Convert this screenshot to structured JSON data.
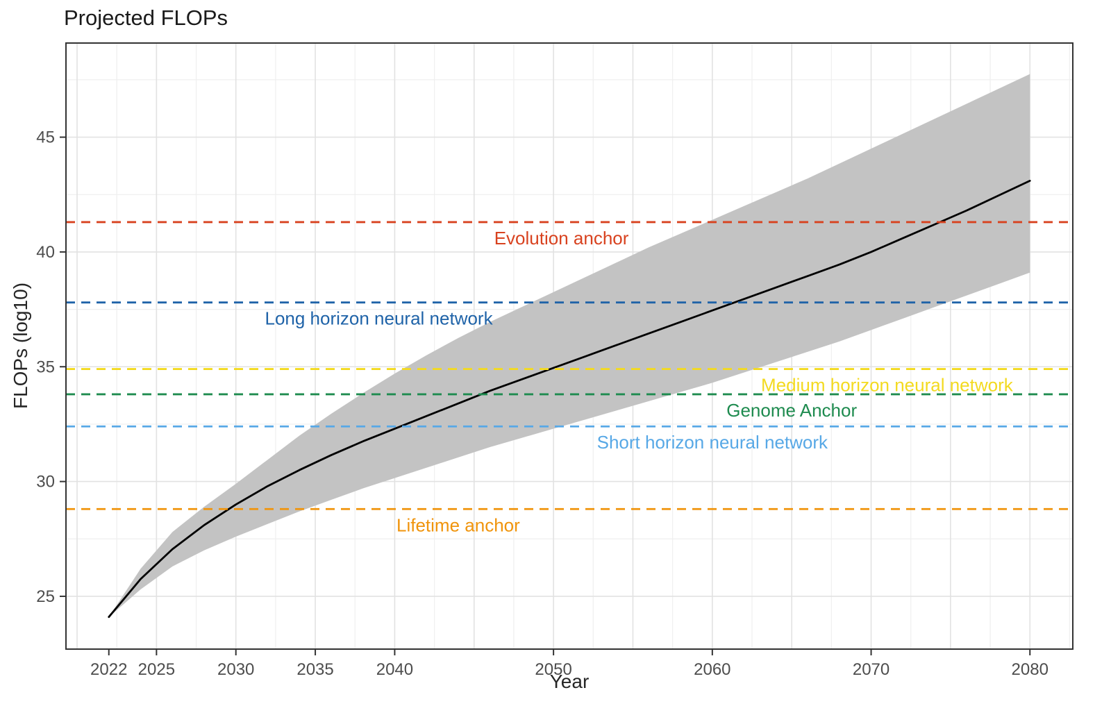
{
  "page": {
    "title": "Projected FLOPs"
  },
  "chart_data": {
    "type": "line",
    "title": "Projected FLOPs",
    "xlabel": "Year",
    "ylabel": "FLOPs (log10)",
    "xlim": [
      2019.3,
      2082.7
    ],
    "ylim": [
      22.7,
      49.1
    ],
    "grid": true,
    "legend": "none",
    "x_tick_values": [
      2022,
      2025,
      2030,
      2035,
      2040,
      2050,
      2060,
      2070,
      2080
    ],
    "x_tick_labels": [
      "2022",
      "2025",
      "2030",
      "2035",
      "2040",
      "2050",
      "2060",
      "2070",
      "2080"
    ],
    "y_tick_values": [
      25,
      30,
      35,
      40,
      45
    ],
    "y_tick_labels": [
      "25",
      "30",
      "35",
      "40",
      "45"
    ],
    "x_grid_major": [
      2020,
      2025,
      2030,
      2035,
      2040,
      2045,
      2050,
      2055,
      2060,
      2065,
      2070,
      2075,
      2080
    ],
    "x_grid_minor": [
      2022.5,
      2027.5,
      2032.5,
      2037.5,
      2042.5,
      2047.5,
      2052.5,
      2057.5,
      2062.5,
      2067.5,
      2072.5,
      2077.5,
      2082.5
    ],
    "y_grid_major": [
      25,
      30,
      35,
      40,
      45
    ],
    "y_grid_minor": [
      27.5,
      32.5,
      37.5,
      42.5,
      47.5
    ],
    "series": [
      {
        "name": "Median projected FLOPs",
        "color": "#000000",
        "style": "solid",
        "x": [
          2022,
          2024,
          2026,
          2028,
          2030,
          2032,
          2034,
          2036,
          2038,
          2040,
          2042,
          2044,
          2046,
          2048,
          2050,
          2052,
          2054,
          2056,
          2058,
          2060,
          2062,
          2064,
          2066,
          2068,
          2070,
          2072,
          2074,
          2076,
          2078,
          2080
        ],
        "y": [
          24.1,
          25.75,
          27.05,
          28.1,
          29.0,
          29.8,
          30.5,
          31.15,
          31.75,
          32.3,
          32.85,
          33.4,
          33.95,
          34.45,
          34.95,
          35.45,
          35.95,
          36.45,
          36.95,
          37.45,
          37.95,
          38.45,
          38.95,
          39.45,
          40.0,
          40.6,
          41.2,
          41.8,
          42.45,
          43.1
        ]
      }
    ],
    "band": {
      "name": "Projection uncertainty interval",
      "color": "#c3c3c3",
      "x": [
        2022,
        2024,
        2026,
        2028,
        2030,
        2032,
        2034,
        2036,
        2038,
        2040,
        2042,
        2044,
        2046,
        2048,
        2050,
        2052,
        2054,
        2056,
        2058,
        2060,
        2062,
        2064,
        2066,
        2068,
        2070,
        2072,
        2074,
        2076,
        2078,
        2080
      ],
      "lower": [
        24.1,
        25.3,
        26.3,
        27.0,
        27.6,
        28.15,
        28.7,
        29.2,
        29.7,
        30.15,
        30.6,
        31.05,
        31.5,
        31.9,
        32.3,
        32.7,
        33.1,
        33.5,
        33.9,
        34.3,
        34.75,
        35.2,
        35.65,
        36.1,
        36.6,
        37.1,
        37.6,
        38.1,
        38.6,
        39.1
      ],
      "upper": [
        24.1,
        26.2,
        27.8,
        28.9,
        29.9,
        30.95,
        32.0,
        32.95,
        33.85,
        34.7,
        35.5,
        36.25,
        36.95,
        37.6,
        38.25,
        38.9,
        39.55,
        40.2,
        40.8,
        41.4,
        42.0,
        42.6,
        43.2,
        43.85,
        44.5,
        45.15,
        45.8,
        46.45,
        47.1,
        47.75
      ]
    },
    "anchors": [
      {
        "label": "Evolution anchor",
        "value": 41.3,
        "color": "#d8421f",
        "label_x": 2050.5
      },
      {
        "label": "Long horizon neural network",
        "value": 37.8,
        "color": "#1f63a8",
        "label_x": 2039
      },
      {
        "label": "Medium horizon neural network",
        "value": 34.9,
        "color": "#f3da20",
        "label_x": 2071
      },
      {
        "label": "Genome Anchor",
        "value": 33.8,
        "color": "#1e8b4f",
        "label_x": 2065
      },
      {
        "label": "Short horizon neural network",
        "value": 32.4,
        "color": "#57a8e6",
        "label_x": 2060
      },
      {
        "label": "Lifetime anchor",
        "value": 28.8,
        "color": "#f0940c",
        "label_x": 2044
      }
    ],
    "theme": {
      "panel_bg": "#ffffff",
      "grid_major": "#e2e2e2",
      "grid_minor": "#efefef",
      "border": "#333333",
      "tick_color": "#333333",
      "tick_text": "#4d4d4d"
    }
  }
}
